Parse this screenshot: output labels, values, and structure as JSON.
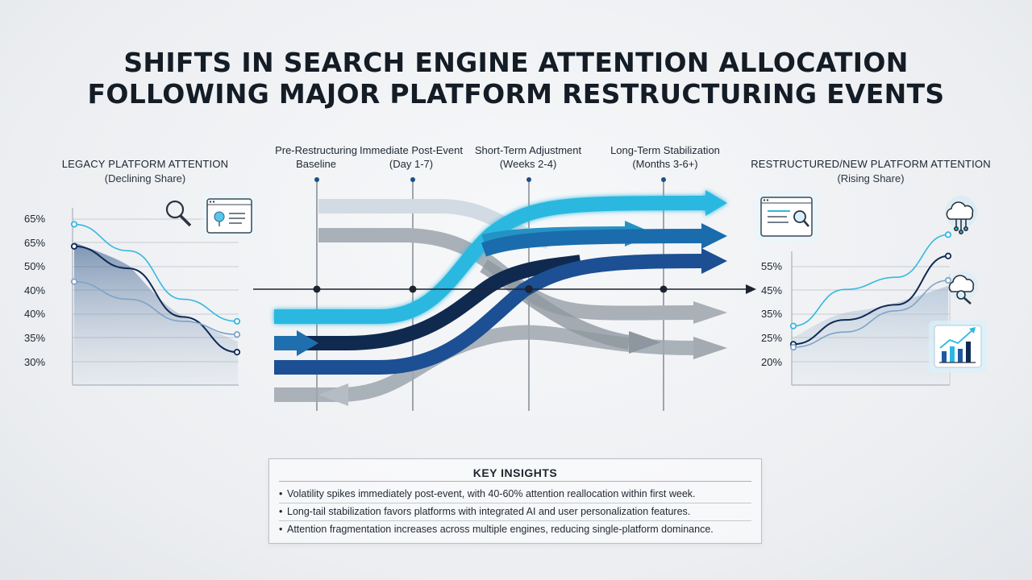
{
  "title_line1": "SHIFTS IN SEARCH ENGINE ATTENTION ALLOCATION",
  "title_line2": "FOLLOWING MAJOR PLATFORM RESTRUCTURING EVENTS",
  "phases": [
    {
      "line1": "Pre-Restructuring",
      "line2": "Baseline"
    },
    {
      "line1": "Immediate Post-Event",
      "line2": "(Day 1-7)"
    },
    {
      "line1": "Short-Term Adjustment",
      "line2": "(Weeks 2-4)"
    },
    {
      "line1": "Long-Term Stabilization",
      "line2": "(Months 3-6+)"
    }
  ],
  "left_panel": {
    "heading": "LEGACY PLATFORM ATTENTION",
    "subheading": "(Declining Share)"
  },
  "right_panel": {
    "heading": "RESTRUCTURED/NEW PLATFORM ATTENTION",
    "subheading": "(Rising Share)"
  },
  "insights": {
    "heading": "KEY INSIGHTS",
    "bullets": [
      "Volatility spikes immediately post-event, with 40-60% attention reallocation within first week.",
      "Long-tail stabilization favors platforms with integrated AI and user personalization features.",
      "Attention fragmentation increases across multiple engines, reducing single-platform dominance."
    ]
  },
  "colors": {
    "cyan": "#2bb8e0",
    "mid_blue": "#1f6fae",
    "navy": "#0f2a55",
    "gray": "#8c949c",
    "light_cyan": "#9fd9ef"
  },
  "icons": [
    "search-icon",
    "browser-window-icon",
    "browser-search-icon",
    "cloud-network-icon",
    "cloud-search-icon",
    "bar-chart-trend-icon"
  ],
  "chart_data": [
    {
      "type": "line",
      "title": "LEGACY PLATFORM ATTENTION",
      "subtitle": "(Declining Share)",
      "y_tick_labels": [
        "65%",
        "65%",
        "50%",
        "40%",
        "40%",
        "35%",
        "30%"
      ],
      "x": [
        "Pre-Restructuring",
        "Immediate Post-Event",
        "Short-Term Adjustment",
        "Long-Term Stabilization"
      ],
      "series": [
        {
          "color": "#36b8e0",
          "values": [
            65,
            59,
            48,
            43
          ]
        },
        {
          "color": "#0f2a55",
          "values": [
            60,
            55,
            44,
            36
          ]
        },
        {
          "color": "#7ea3c8",
          "values": [
            52,
            48,
            43,
            40
          ]
        }
      ],
      "grid": true
    },
    {
      "type": "line",
      "title": "RESTRUCTURED/NEW PLATFORM ATTENTION",
      "subtitle": "(Rising Share)",
      "y_tick_labels": [
        "55%",
        "45%",
        "35%",
        "25%",
        "20%"
      ],
      "x": [
        "Pre-Restructuring",
        "Immediate Post-Event",
        "Short-Term Adjustment",
        "Long-Term Stabilization"
      ],
      "series": [
        {
          "color": "#36b8e0",
          "values": [
            32,
            44,
            48,
            62
          ]
        },
        {
          "color": "#0f2a55",
          "values": [
            26,
            34,
            39,
            55
          ]
        },
        {
          "color": "#7ea3c8",
          "values": [
            25,
            30,
            37,
            47
          ]
        }
      ],
      "grid": true
    }
  ]
}
